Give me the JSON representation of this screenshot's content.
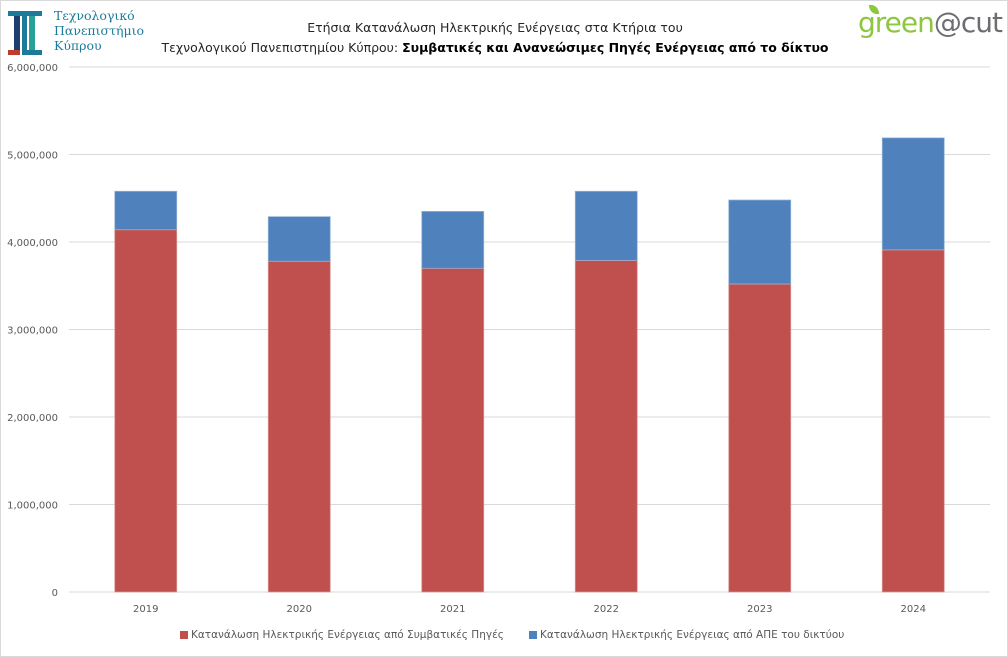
{
  "header": {
    "university_name_lines": [
      "Τεχνολογικό",
      "Πανεπιστήμιο",
      "Κύπρου"
    ],
    "title_line1": "Ετήσια Κατανάλωση Ηλεκτρικής Ενέργειας στα Κτήρια του",
    "title_line2_plain": "Τεχνολογικού Πανεπιστημίου Κύπρου: ",
    "title_line2_bold": "Συμβατικές και Ανανεώσιμες Πηγές Ενέργειας από το δίκτυο",
    "brand_logo": {
      "green_part": "green",
      "gray_part": "@cut"
    }
  },
  "colors": {
    "conventional": "#c0504d",
    "renewable": "#4f81bd",
    "gridline": "#d9d9d9",
    "brand_green": "#8dc63f",
    "brand_gray": "#6d6e71",
    "university_teal": "#1e7a9b"
  },
  "chart_data": {
    "type": "bar",
    "stacked": true,
    "title": "Ετήσια Κατανάλωση Ηλεκτρικής Ενέργειας στα Κτήρια του Τεχνολογικού Πανεπιστημίου Κύπρου: Συμβατικές και Ανανεώσιμες Πηγές Ενέργειας από το δίκτυο",
    "xlabel": "",
    "ylabel": "",
    "categories": [
      "2019",
      "2020",
      "2021",
      "2022",
      "2023",
      "2024"
    ],
    "series": [
      {
        "name": "Κατανάλωση Ηλεκτρικής Ενέργειας από Συμβατικές Πηγές",
        "color": "#c0504d",
        "values": [
          4140000,
          3780000,
          3700000,
          3790000,
          3520000,
          3910000
        ]
      },
      {
        "name": "Κατανάλωση Ηλεκτρικής Ενέργειας από ΑΠΕ του δικτύου",
        "color": "#4f81bd",
        "values": [
          440000,
          510000,
          650000,
          790000,
          960000,
          1280000
        ]
      }
    ],
    "ylim": [
      0,
      6000000
    ],
    "yticks": [
      0,
      1000000,
      2000000,
      3000000,
      4000000,
      5000000,
      6000000
    ],
    "ytick_labels": [
      "0",
      "1,000,000",
      "2,000,000",
      "3,000,000",
      "4,000,000",
      "5,000,000",
      "6,000,000"
    ],
    "grid": true,
    "legend_position": "bottom"
  }
}
